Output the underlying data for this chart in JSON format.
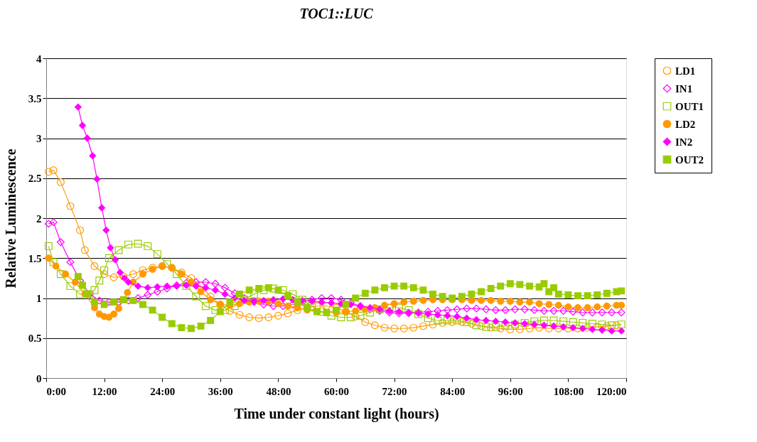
{
  "chart_data": {
    "type": "line",
    "title": "TOC1::LUC",
    "xlabel": "Time under constant light (hours)",
    "ylabel": "Relative Luminescence",
    "xlim": [
      0,
      120
    ],
    "xticks": [
      {
        "value": 0,
        "label": "0:00"
      },
      {
        "value": 12,
        "label": "12:00"
      },
      {
        "value": 24,
        "label": "24:00"
      },
      {
        "value": 36,
        "label": "36:00"
      },
      {
        "value": 48,
        "label": "48:00"
      },
      {
        "value": 60,
        "label": "60:00"
      },
      {
        "value": 72,
        "label": "72:00"
      },
      {
        "value": 84,
        "label": "84:00"
      },
      {
        "value": 96,
        "label": "96:00"
      },
      {
        "value": 108,
        "label": "108:00"
      },
      {
        "value": 120,
        "label": "120:00"
      }
    ],
    "ylim": [
      0,
      4
    ],
    "yticks": [
      0,
      0.5,
      1,
      1.5,
      2,
      2.5,
      3,
      3.5,
      4
    ],
    "grid": "y",
    "legend": "right",
    "line_style": "solid",
    "series": [
      {
        "name": "LD1",
        "color": "#ff9900",
        "marker": "circle",
        "x": [
          0.5,
          1.5,
          3,
          5,
          7,
          8,
          10,
          12,
          14,
          16,
          18,
          20,
          22,
          24,
          26,
          28,
          30,
          32,
          34,
          36,
          38,
          40,
          42,
          44,
          46,
          48,
          50,
          52,
          54,
          56,
          58,
          60,
          62,
          64,
          66,
          68,
          70,
          72,
          74,
          76,
          78,
          80,
          82,
          84,
          86,
          88,
          90,
          92,
          94,
          96,
          98,
          100,
          102,
          104,
          106,
          108,
          110,
          112,
          114,
          116,
          118
        ],
        "values": [
          2.58,
          2.6,
          2.45,
          2.15,
          1.85,
          1.6,
          1.4,
          1.3,
          1.26,
          1.27,
          1.3,
          1.35,
          1.38,
          1.4,
          1.38,
          1.32,
          1.25,
          1.15,
          1.02,
          0.92,
          0.84,
          0.79,
          0.76,
          0.75,
          0.76,
          0.78,
          0.81,
          0.85,
          0.88,
          0.9,
          0.9,
          0.88,
          0.83,
          0.77,
          0.7,
          0.66,
          0.63,
          0.62,
          0.62,
          0.63,
          0.65,
          0.67,
          0.69,
          0.7,
          0.7,
          0.68,
          0.65,
          0.63,
          0.62,
          0.61,
          0.61,
          0.62,
          0.63,
          0.62,
          0.62,
          0.62,
          0.62,
          0.63,
          0.64,
          0.65,
          0.66
        ]
      },
      {
        "name": "IN1",
        "color": "#ff00ff",
        "marker": "diamond",
        "x": [
          0.5,
          1.5,
          3,
          5,
          7,
          9,
          11,
          13,
          15,
          17,
          19,
          21,
          23,
          25,
          27,
          29,
          31,
          33,
          35,
          37,
          39,
          41,
          43,
          45,
          47,
          49,
          51,
          53,
          55,
          57,
          59,
          61,
          63,
          65,
          67,
          69,
          71,
          73,
          75,
          77,
          79,
          81,
          83,
          85,
          87,
          89,
          91,
          93,
          95,
          97,
          99,
          101,
          103,
          105,
          107,
          109,
          111,
          113,
          115,
          117,
          119
        ],
        "values": [
          1.93,
          1.95,
          1.7,
          1.45,
          1.22,
          1.05,
          0.97,
          0.95,
          0.95,
          0.97,
          1.0,
          1.04,
          1.08,
          1.12,
          1.16,
          1.19,
          1.2,
          1.2,
          1.18,
          1.13,
          1.06,
          1.0,
          0.95,
          0.92,
          0.9,
          0.9,
          0.92,
          0.95,
          0.98,
          1.0,
          1.0,
          0.98,
          0.94,
          0.9,
          0.86,
          0.84,
          0.82,
          0.81,
          0.81,
          0.82,
          0.83,
          0.84,
          0.85,
          0.86,
          0.87,
          0.87,
          0.86,
          0.85,
          0.85,
          0.86,
          0.86,
          0.85,
          0.84,
          0.84,
          0.84,
          0.83,
          0.82,
          0.82,
          0.82,
          0.82,
          0.82
        ]
      },
      {
        "name": "OUT1",
        "color": "#99cc00",
        "marker": "square",
        "x": [
          0.5,
          1.5,
          3,
          5,
          7,
          9,
          10,
          11,
          12,
          13,
          15,
          17,
          19,
          21,
          23,
          25,
          27,
          29,
          31,
          33,
          35,
          37,
          39,
          41,
          43,
          45,
          47,
          49,
          51,
          53,
          55,
          57,
          59,
          61,
          63,
          65,
          67,
          69,
          71,
          73,
          75,
          77,
          79,
          81,
          83,
          85,
          87,
          89,
          91,
          93,
          95,
          97,
          99,
          101,
          103,
          105,
          107,
          109,
          111,
          113,
          115,
          117,
          119
        ],
        "values": [
          1.65,
          1.45,
          1.3,
          1.15,
          1.05,
          1.05,
          1.1,
          1.22,
          1.35,
          1.5,
          1.6,
          1.67,
          1.68,
          1.65,
          1.55,
          1.43,
          1.3,
          1.15,
          1.02,
          0.9,
          0.85,
          0.85,
          0.9,
          0.98,
          1.05,
          1.1,
          1.12,
          1.1,
          1.05,
          0.98,
          0.9,
          0.83,
          0.78,
          0.76,
          0.76,
          0.78,
          0.82,
          0.86,
          0.88,
          0.88,
          0.85,
          0.8,
          0.75,
          0.72,
          0.72,
          0.72,
          0.7,
          0.66,
          0.64,
          0.64,
          0.65,
          0.67,
          0.69,
          0.71,
          0.72,
          0.72,
          0.71,
          0.7,
          0.69,
          0.68,
          0.67,
          0.66,
          0.67
        ]
      },
      {
        "name": "LD2",
        "color": "#ff9900",
        "marker": "circle",
        "x": [
          0.5,
          2,
          4,
          6,
          8,
          10,
          11,
          12,
          13,
          14,
          15,
          16.8,
          18,
          20,
          22,
          24,
          26,
          28,
          30,
          32,
          34,
          36,
          38,
          40,
          42,
          44,
          46,
          48,
          50,
          52,
          54,
          56,
          58,
          60,
          62,
          64,
          66,
          68,
          70,
          72,
          74,
          76,
          78,
          80,
          82,
          84,
          86,
          88,
          90,
          92,
          94,
          96,
          98,
          100,
          102,
          104,
          106,
          108,
          110,
          112,
          114,
          116,
          118,
          119
        ],
        "values": [
          1.5,
          1.4,
          1.3,
          1.2,
          1.05,
          0.88,
          0.8,
          0.77,
          0.76,
          0.8,
          0.87,
          1.07,
          1.2,
          1.3,
          1.36,
          1.4,
          1.38,
          1.3,
          1.2,
          1.08,
          0.98,
          0.92,
          0.91,
          0.93,
          0.95,
          0.96,
          0.96,
          0.93,
          0.9,
          0.88,
          0.85,
          0.83,
          0.82,
          0.82,
          0.83,
          0.84,
          0.86,
          0.88,
          0.91,
          0.93,
          0.95,
          0.96,
          0.97,
          0.98,
          0.98,
          0.98,
          0.98,
          0.97,
          0.97,
          0.97,
          0.96,
          0.96,
          0.95,
          0.95,
          0.93,
          0.92,
          0.91,
          0.89,
          0.88,
          0.88,
          0.89,
          0.9,
          0.91,
          0.91
        ]
      },
      {
        "name": "IN2",
        "color": "#ff00ff",
        "marker": "diamond",
        "x": [
          6.6,
          7.5,
          8.5,
          9.6,
          10.5,
          11.5,
          12.4,
          13.3,
          14.3,
          15.3,
          16.2,
          17,
          19,
          21,
          23,
          25,
          27,
          29,
          31,
          33,
          35,
          37,
          39,
          41,
          43,
          45,
          47,
          49,
          51,
          53,
          55,
          57,
          59,
          61,
          63,
          65,
          67,
          69,
          71,
          73,
          75,
          77,
          79,
          81,
          83,
          85,
          87,
          89,
          91,
          93,
          95,
          97,
          99,
          101,
          103,
          105,
          107,
          109,
          111,
          113,
          115,
          117,
          119
        ],
        "values": [
          3.39,
          3.16,
          3.0,
          2.78,
          2.49,
          2.13,
          1.85,
          1.63,
          1.48,
          1.32,
          1.25,
          1.2,
          1.15,
          1.13,
          1.14,
          1.15,
          1.15,
          1.16,
          1.15,
          1.13,
          1.1,
          1.05,
          1.0,
          0.97,
          0.96,
          0.97,
          0.98,
          0.99,
          0.98,
          0.97,
          0.96,
          0.95,
          0.94,
          0.93,
          0.92,
          0.9,
          0.88,
          0.86,
          0.84,
          0.83,
          0.82,
          0.81,
          0.8,
          0.79,
          0.78,
          0.77,
          0.75,
          0.73,
          0.72,
          0.71,
          0.7,
          0.69,
          0.68,
          0.67,
          0.66,
          0.65,
          0.64,
          0.63,
          0.62,
          0.61,
          0.6,
          0.59,
          0.59
        ]
      },
      {
        "name": "OUT2",
        "color": "#99cc00",
        "marker": "square",
        "x": [
          6.6,
          7.5,
          8.5,
          10,
          12,
          14,
          16,
          18,
          20,
          22,
          24,
          26,
          28,
          30,
          32,
          34,
          36,
          38,
          40,
          42,
          44,
          46,
          48,
          50,
          52,
          54,
          56,
          58,
          60,
          62,
          64,
          66,
          68,
          70,
          72,
          74,
          76,
          78,
          80,
          82,
          84,
          86,
          88,
          90,
          92,
          94,
          96,
          98,
          100,
          102,
          103,
          104,
          105,
          106,
          108,
          110,
          112,
          114,
          116,
          118,
          119
        ],
        "values": [
          1.27,
          1.16,
          1.05,
          0.95,
          0.92,
          0.95,
          0.98,
          0.97,
          0.92,
          0.85,
          0.76,
          0.68,
          0.63,
          0.62,
          0.65,
          0.72,
          0.83,
          0.95,
          1.05,
          1.1,
          1.12,
          1.13,
          1.1,
          1.03,
          0.95,
          0.88,
          0.83,
          0.82,
          0.85,
          0.92,
          1.0,
          1.06,
          1.1,
          1.13,
          1.15,
          1.15,
          1.13,
          1.1,
          1.05,
          1.02,
          1.0,
          1.02,
          1.05,
          1.08,
          1.12,
          1.15,
          1.18,
          1.17,
          1.15,
          1.14,
          1.18,
          1.08,
          1.13,
          1.05,
          1.04,
          1.03,
          1.03,
          1.04,
          1.06,
          1.08,
          1.09
        ]
      }
    ]
  }
}
